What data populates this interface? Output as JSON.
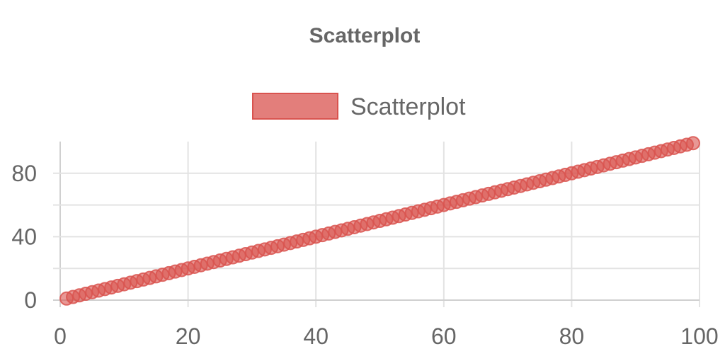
{
  "chart_data": {
    "type": "scatter",
    "title": "Scatterplot",
    "xlabel": "",
    "ylabel": "",
    "xlim": [
      0,
      100
    ],
    "ylim": [
      -5,
      100
    ],
    "x_ticks": [
      "0",
      "20",
      "40",
      "60",
      "80",
      "100"
    ],
    "y_ticks": [
      "0",
      "40",
      "80"
    ],
    "grid": true,
    "legend": "top-center",
    "series": [
      {
        "name": "Scatterplot",
        "color": "#d9534f",
        "x": [
          1,
          2,
          3,
          4,
          5,
          6,
          7,
          8,
          9,
          10,
          11,
          12,
          13,
          14,
          15,
          16,
          17,
          18,
          19,
          20,
          21,
          22,
          23,
          24,
          25,
          26,
          27,
          28,
          29,
          30,
          31,
          32,
          33,
          34,
          35,
          36,
          37,
          38,
          39,
          40,
          41,
          42,
          43,
          44,
          45,
          46,
          47,
          48,
          49,
          50,
          51,
          52,
          53,
          54,
          55,
          56,
          57,
          58,
          59,
          60,
          61,
          62,
          63,
          64,
          65,
          66,
          67,
          68,
          69,
          70,
          71,
          72,
          73,
          74,
          75,
          76,
          77,
          78,
          79,
          80,
          81,
          82,
          83,
          84,
          85,
          86,
          87,
          88,
          89,
          90,
          91,
          92,
          93,
          94,
          95,
          96,
          97,
          98,
          99
        ],
        "y": [
          1,
          2,
          3,
          4,
          5,
          6,
          7,
          8,
          9,
          10,
          11,
          12,
          13,
          14,
          15,
          16,
          17,
          18,
          19,
          20,
          21,
          22,
          23,
          24,
          25,
          26,
          27,
          28,
          29,
          30,
          31,
          32,
          33,
          34,
          35,
          36,
          37,
          38,
          39,
          40,
          41,
          42,
          43,
          44,
          45,
          46,
          47,
          48,
          49,
          50,
          51,
          52,
          53,
          54,
          55,
          56,
          57,
          58,
          59,
          60,
          61,
          62,
          63,
          64,
          65,
          66,
          67,
          68,
          69,
          70,
          71,
          72,
          73,
          74,
          75,
          76,
          77,
          78,
          79,
          80,
          81,
          82,
          83,
          84,
          85,
          86,
          87,
          88,
          89,
          90,
          91,
          92,
          93,
          94,
          95,
          96,
          97,
          98,
          99
        ]
      }
    ]
  }
}
